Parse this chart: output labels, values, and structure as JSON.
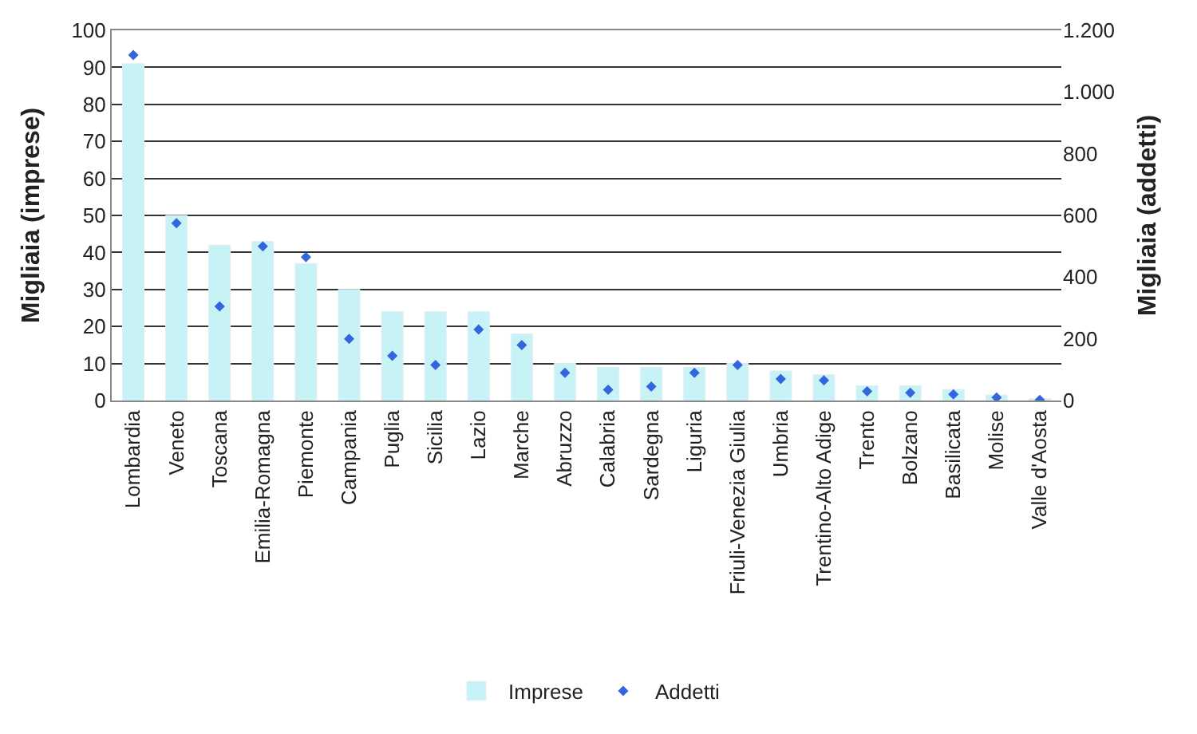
{
  "chart_data": {
    "type": "bar",
    "ylabel": "Migliaia (imprese)",
    "y2label": "Migliaia (addetti)",
    "categories": [
      "Lombardia",
      "Veneto",
      "Toscana",
      "Emilia-Romagna",
      "Piemonte",
      "Campania",
      "Puglia",
      "Sicilia",
      "Lazio",
      "Marche",
      "Abruzzo",
      "Calabria",
      "Sardegna",
      "Liguria",
      "Friuli-Venezia Giulia",
      "Umbria",
      "Trentino-Alto Adige",
      "Trento",
      "Bolzano",
      "Basilicata",
      "Molise",
      "Valle d'Aosta"
    ],
    "series": [
      {
        "name": "Imprese",
        "color": "#c8f3f6",
        "values": [
          91,
          50,
          42,
          43,
          37,
          30,
          24,
          24,
          24,
          18,
          10,
          9,
          9,
          9,
          10,
          8,
          7,
          4,
          4,
          3,
          1.5,
          0.5
        ]
      },
      {
        "name": "Addetti",
        "type": "scatter",
        "axis": "y2",
        "color": "#3366dd",
        "marker": "diamond",
        "values": [
          1120,
          575,
          305,
          500,
          465,
          200,
          145,
          115,
          230,
          180,
          90,
          35,
          45,
          90,
          115,
          70,
          65,
          30,
          25,
          20,
          10,
          2
        ]
      }
    ],
    "ylim": [
      0,
      100
    ],
    "yticks": [
      0,
      10,
      20,
      30,
      40,
      50,
      60,
      70,
      80,
      90,
      100
    ],
    "y2lim": [
      0,
      1200
    ],
    "y2ticks": [
      0,
      {
        "value": 200,
        "label": "200"
      },
      {
        "value": 400,
        "label": "400"
      },
      {
        "value": 600,
        "label": "600"
      },
      {
        "value": 800,
        "label": "800"
      },
      {
        "value": 1000,
        "label": "1.000"
      },
      {
        "value": 1200,
        "label": "1.200"
      }
    ],
    "grid": "y",
    "legend": "bottom"
  }
}
